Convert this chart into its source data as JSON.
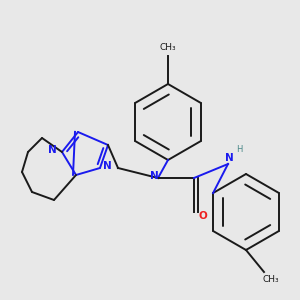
{
  "bg_color": "#e8e8e8",
  "bond_color": "#1a1a1a",
  "nitrogen_color": "#1a1aee",
  "oxygen_color": "#ee2020",
  "hydrogen_color": "#4a8888",
  "lw": 1.4,
  "figsize": [
    3.0,
    3.0
  ],
  "dpi": 100,
  "xlim": [
    0,
    300
  ],
  "ylim": [
    0,
    300
  ]
}
